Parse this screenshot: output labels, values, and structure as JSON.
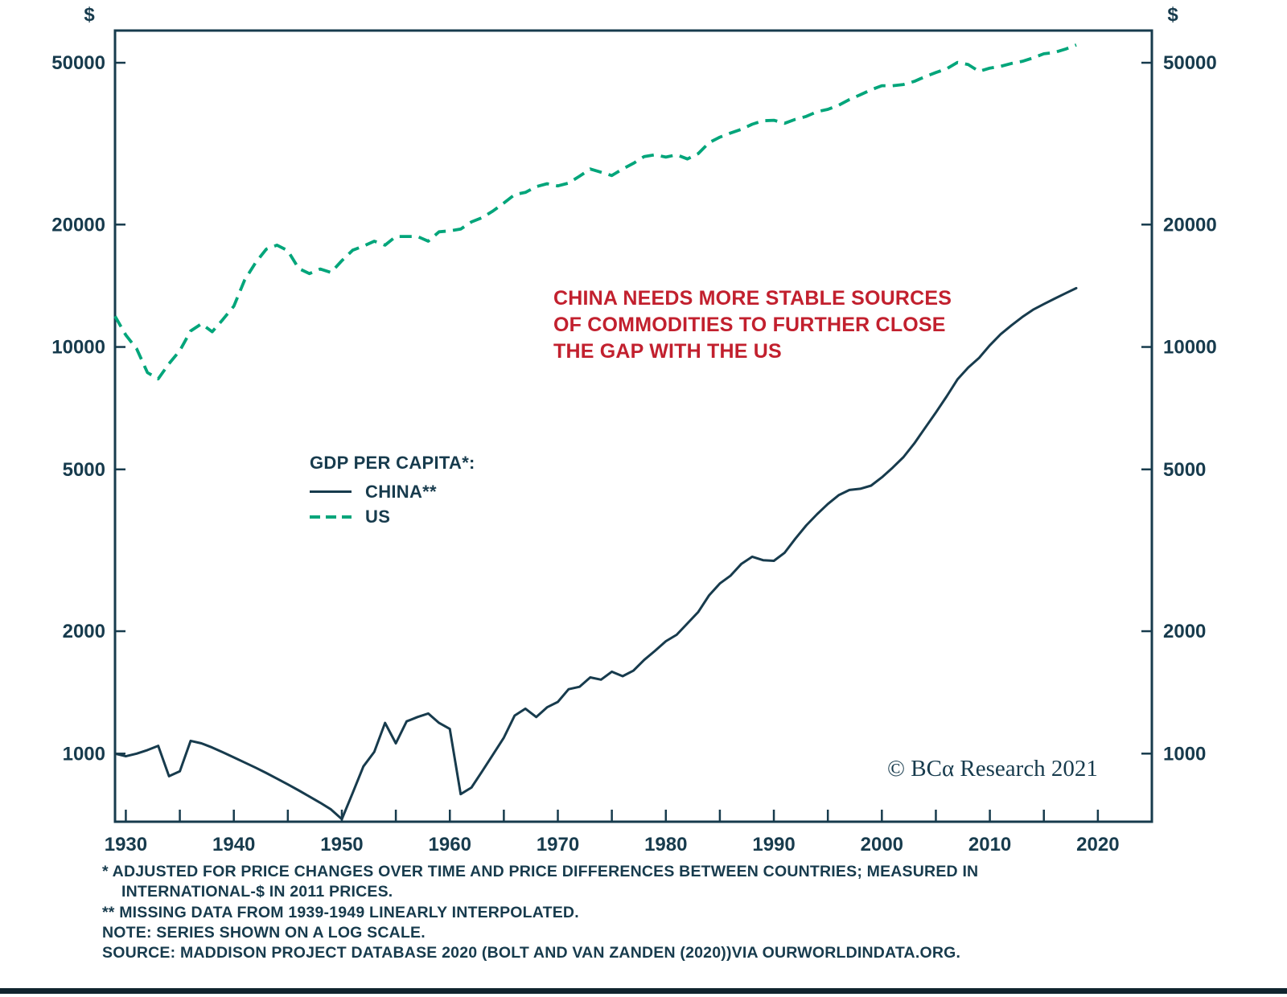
{
  "colors": {
    "ink": "#173b4d",
    "us_green": "#00a57a",
    "annotation_red": "#c2202e",
    "bottom_bar": "#10242e"
  },
  "chart_data": {
    "type": "line",
    "scale": "log",
    "unit": "$",
    "grid": false,
    "xlim": [
      1929,
      2025
    ],
    "ylim": [
      680,
      60000
    ],
    "x_ticks": [
      1930,
      1940,
      1950,
      1960,
      1970,
      1980,
      1990,
      2000,
      2010,
      2020
    ],
    "x_minor_tick_step": 5,
    "y_ticks": [
      1000,
      2000,
      5000,
      10000,
      20000,
      50000
    ],
    "legend": {
      "title": "GDP PER CAPITA*:",
      "position": "inside center-left"
    },
    "annotation": {
      "lines": [
        "CHINA NEEDS MORE STABLE SOURCES",
        "OF COMMODITIES TO FURTHER CLOSE",
        "THE GAP WITH THE US"
      ]
    },
    "x": [
      1929,
      1930,
      1931,
      1932,
      1933,
      1934,
      1935,
      1936,
      1937,
      1938,
      1939,
      1940,
      1941,
      1942,
      1943,
      1944,
      1945,
      1946,
      1947,
      1948,
      1949,
      1950,
      1951,
      1952,
      1953,
      1954,
      1955,
      1956,
      1957,
      1958,
      1959,
      1960,
      1961,
      1962,
      1963,
      1964,
      1965,
      1966,
      1967,
      1968,
      1969,
      1970,
      1971,
      1972,
      1973,
      1974,
      1975,
      1976,
      1977,
      1978,
      1979,
      1980,
      1981,
      1982,
      1983,
      1984,
      1985,
      1986,
      1987,
      1988,
      1989,
      1990,
      1991,
      1992,
      1993,
      1994,
      1995,
      1996,
      1997,
      1998,
      1999,
      2000,
      2001,
      2002,
      2003,
      2004,
      2005,
      2006,
      2007,
      2008,
      2009,
      2010,
      2011,
      2012,
      2013,
      2014,
      2015,
      2016,
      2017,
      2018
    ],
    "series": [
      {
        "name": "CHINA**",
        "style": "solid",
        "color": "#173b4d",
        "values": [
          1000,
          985,
          1000,
          1020,
          1045,
          880,
          905,
          1075,
          1060,
          1035,
          1007,
          979,
          951,
          924,
          896,
          868,
          840,
          812,
          784,
          757,
          729,
          690,
          800,
          930,
          1010,
          1190,
          1060,
          1200,
          1230,
          1255,
          1190,
          1150,
          795,
          825,
          905,
          995,
          1095,
          1240,
          1290,
          1230,
          1300,
          1340,
          1440,
          1460,
          1540,
          1520,
          1590,
          1550,
          1600,
          1700,
          1790,
          1890,
          1960,
          2090,
          2230,
          2450,
          2620,
          2740,
          2930,
          3050,
          2990,
          2980,
          3120,
          3380,
          3640,
          3880,
          4110,
          4320,
          4450,
          4480,
          4560,
          4780,
          5050,
          5360,
          5790,
          6320,
          6900,
          7560,
          8320,
          8900,
          9400,
          10100,
          10750,
          11300,
          11850,
          12350,
          12750,
          13150,
          13550,
          13950
        ]
      },
      {
        "name": "US",
        "style": "dashed",
        "color": "#00a57a",
        "values": [
          11900,
          10700,
          9900,
          8650,
          8350,
          9100,
          9800,
          10950,
          11400,
          10900,
          11700,
          12600,
          14600,
          16100,
          17400,
          17800,
          17250,
          15600,
          15150,
          15550,
          15250,
          16300,
          17300,
          17700,
          18200,
          17800,
          18700,
          18700,
          18700,
          18200,
          19200,
          19300,
          19500,
          20300,
          20800,
          21600,
          22600,
          23700,
          24000,
          24800,
          25200,
          24900,
          25300,
          26300,
          27400,
          26900,
          26400,
          27400,
          28300,
          29400,
          29700,
          29300,
          29700,
          29000,
          29900,
          31800,
          32800,
          33600,
          34300,
          35300,
          36000,
          36100,
          35500,
          36300,
          36900,
          37900,
          38400,
          39300,
          40600,
          41700,
          42900,
          43900,
          43900,
          44200,
          45000,
          46200,
          47300,
          48300,
          50100,
          49500,
          47600,
          48500,
          49000,
          49800,
          50400,
          51400,
          52600,
          53000,
          54000,
          55300
        ]
      }
    ]
  },
  "copyright": "© BCα Research 2021",
  "footnotes": [
    "* ADJUSTED FOR PRICE CHANGES OVER TIME AND PRICE DIFFERENCES BETWEEN COUNTRIES; MEASURED IN",
    "INTERNATIONAL-$ IN 2011 PRICES.",
    "** MISSING DATA FROM 1939-1949 LINEARLY INTERPOLATED.",
    "NOTE: SERIES SHOWN ON A LOG SCALE.",
    "SOURCE: MADDISON PROJECT DATABASE 2020 (BOLT AND VAN ZANDEN (2020))VIA OURWORLDINDATA.ORG."
  ]
}
